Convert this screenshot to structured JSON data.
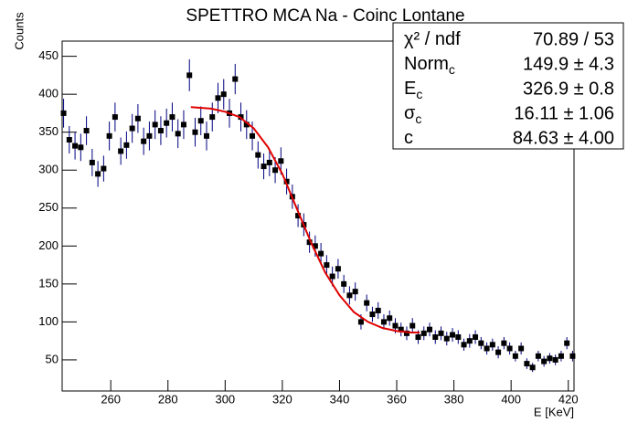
{
  "chart_data": {
    "type": "scatter",
    "title": "SPETTRO MCA Na - Coinc Lontane",
    "x_label": "E [KeV]",
    "y_label": "Counts",
    "xlim": [
      243,
      422
    ],
    "ylim": [
      9,
      470
    ],
    "xticks": [
      260,
      280,
      300,
      320,
      340,
      360,
      380,
      400,
      420
    ],
    "yticks": [
      50,
      100,
      150,
      200,
      250,
      300,
      350,
      400,
      450
    ],
    "color": "#000000",
    "error_color": "#000080",
    "x": [
      243.5,
      245.5,
      247.5,
      249.5,
      251.5,
      253.5,
      255.5,
      257.5,
      259.5,
      261.5,
      263.5,
      265.5,
      267.5,
      269.5,
      271.5,
      273.5,
      275.5,
      277.5,
      279.5,
      281.5,
      283.5,
      285.5,
      287.5,
      289.5,
      291.5,
      293.5,
      295.5,
      297.5,
      299.5,
      301.5,
      303.5,
      305.5,
      307.5,
      309.5,
      311.5,
      313.5,
      315.5,
      317.5,
      319.5,
      321.5,
      323.5,
      325.5,
      327.5,
      329.5,
      331.5,
      333.5,
      335.5,
      337.5,
      339.5,
      341.5,
      343.5,
      345.5,
      347.5,
      349.5,
      351.5,
      353.5,
      355.5,
      357.5,
      359.5,
      361.5,
      363.5,
      365.5,
      367.5,
      369.5,
      371.5,
      373.5,
      375.5,
      377.5,
      379.5,
      381.5,
      383.5,
      385.5,
      387.5,
      389.5,
      391.5,
      393.5,
      395.5,
      397.5,
      399.5,
      401.5,
      403.5,
      405.5,
      407.5,
      409.5,
      411.5,
      413.5,
      415.5,
      417.5,
      419.5,
      421.5
    ],
    "values": [
      375,
      340,
      332,
      330,
      352,
      310,
      295,
      302,
      345,
      370,
      325,
      333,
      355,
      368,
      338,
      345,
      360,
      352,
      362,
      370,
      348,
      360,
      425,
      350,
      365,
      345,
      370,
      395,
      400,
      375,
      420,
      370,
      360,
      345,
      320,
      305,
      310,
      300,
      312,
      285,
      265,
      240,
      228,
      205,
      200,
      190,
      175,
      160,
      170,
      150,
      135,
      140,
      100,
      125,
      110,
      115,
      100,
      105,
      95,
      90,
      85,
      95,
      80,
      85,
      90,
      80,
      85,
      78,
      83,
      80,
      70,
      75,
      80,
      72,
      65,
      70,
      60,
      72,
      65,
      55,
      65,
      45,
      40,
      55,
      48,
      52,
      50,
      55,
      72,
      55
    ],
    "errors": [
      19,
      18,
      18,
      18,
      19,
      18,
      17,
      17,
      19,
      19,
      18,
      18,
      19,
      19,
      18,
      19,
      19,
      19,
      19,
      19,
      19,
      19,
      21,
      19,
      19,
      19,
      19,
      20,
      20,
      19,
      20,
      19,
      19,
      19,
      18,
      17,
      18,
      17,
      18,
      17,
      16,
      15,
      15,
      14,
      14,
      14,
      13,
      13,
      13,
      12,
      12,
      12,
      10,
      11,
      10,
      11,
      10,
      10,
      10,
      9,
      9,
      10,
      9,
      9,
      9,
      9,
      9,
      9,
      9,
      9,
      8,
      9,
      9,
      8,
      8,
      8,
      8,
      8,
      8,
      7,
      8,
      7,
      6,
      7,
      7,
      7,
      7,
      7,
      8,
      7
    ],
    "fit": {
      "color": "#e00000",
      "x": [
        288,
        295,
        300,
        305,
        310,
        315,
        320,
        325,
        330,
        335,
        340,
        345,
        350,
        355,
        360,
        365,
        368
      ],
      "values": [
        383,
        381,
        377,
        370,
        355,
        330,
        295,
        250,
        205,
        165,
        135,
        113,
        100,
        92,
        88,
        86,
        86
      ]
    },
    "stats": [
      {
        "name": "χ² / ndf",
        "value": "70.89 / 53"
      },
      {
        "name": "Norm",
        "sub": "c",
        "value": "149.9 ± 4.3"
      },
      {
        "name": "E",
        "sub": "c",
        "value": "326.9 ± 0.8"
      },
      {
        "name": "σ",
        "sub": "c",
        "value": "16.11 ± 1.06"
      },
      {
        "name": "c",
        "value": "84.63 ± 4.00"
      }
    ]
  }
}
